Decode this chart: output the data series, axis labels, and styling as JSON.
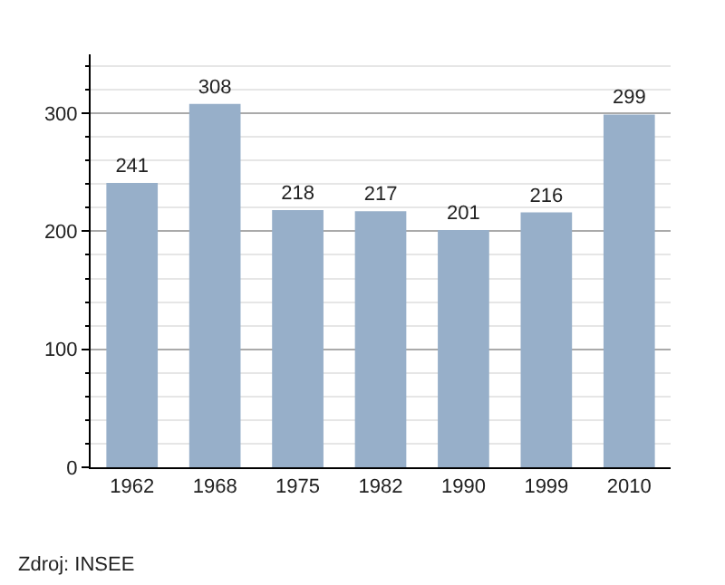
{
  "chart_data": {
    "type": "bar",
    "categories": [
      "1962",
      "1968",
      "1975",
      "1982",
      "1990",
      "1999",
      "2010"
    ],
    "values": [
      241,
      308,
      218,
      217,
      201,
      216,
      299
    ],
    "color": "#97afc9",
    "ylim": [
      0,
      350
    ],
    "yticks": [
      0,
      100,
      200,
      300
    ],
    "grid": "y",
    "data_labels": true,
    "annotations": [
      "Zdroj: INSEE"
    ]
  }
}
